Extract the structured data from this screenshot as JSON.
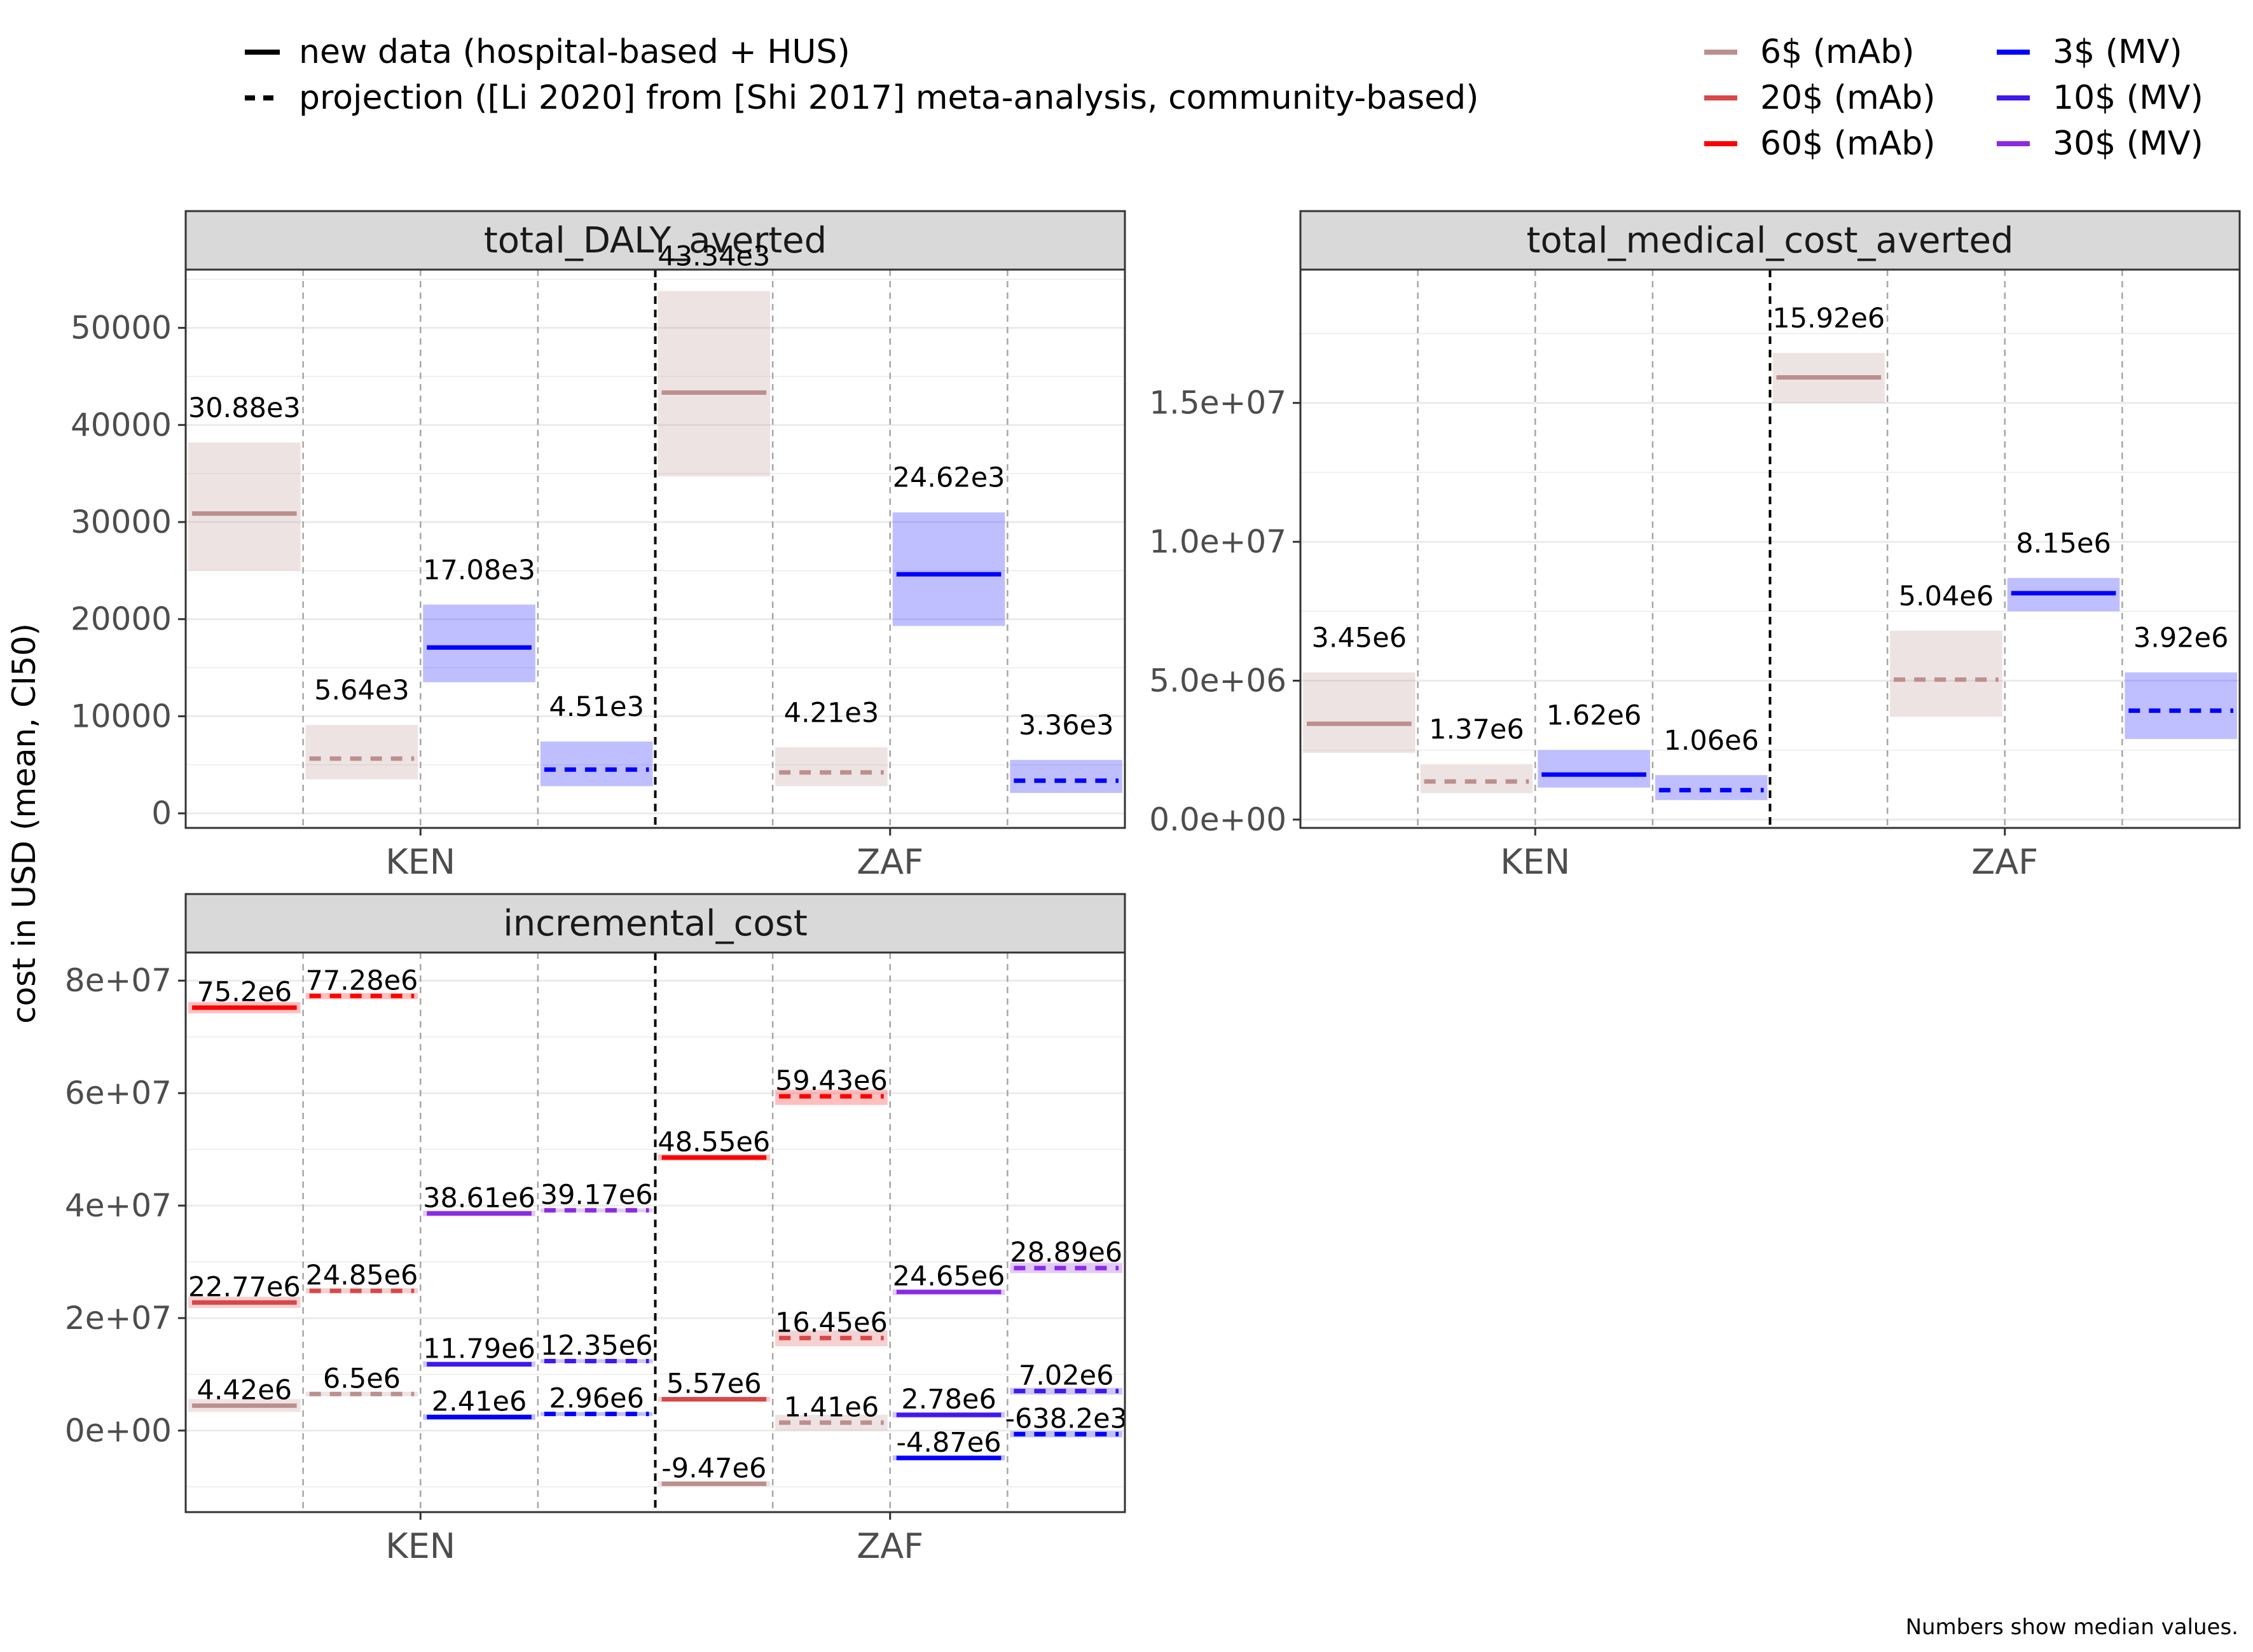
{
  "legend": {
    "linetype": [
      {
        "label": "new data (hospital-based + HUS)",
        "dash": "solid"
      },
      {
        "label": "projection ([Li 2020] from [Shi 2017] meta-analysis, community-based)",
        "dash": "dashed"
      }
    ],
    "colors": [
      {
        "label": "6$ (mAb)",
        "color": "#bc8f8f"
      },
      {
        "label": "20$ (mAb)",
        "color": "#d94747"
      },
      {
        "label": "60$ (mAb)",
        "color": "#ff0000"
      },
      {
        "label": "3$ (MV)",
        "color": "#0000ff"
      },
      {
        "label": "10$ (MV)",
        "color": "#4018ee"
      },
      {
        "label": "30$ (MV)",
        "color": "#8a2be2"
      }
    ]
  },
  "y_axis_label": "cost in USD (mean, CI50)",
  "caption": "Numbers show median values.",
  "chart_data": [
    {
      "type": "crossbar",
      "title": "total_DALY_averted",
      "categories": [
        "KEN",
        "ZAF"
      ],
      "ylim": [
        -1500,
        56000
      ],
      "yticks": [
        0,
        10000,
        20000,
        30000,
        40000,
        50000
      ],
      "ytick_labels": [
        "0",
        "10000",
        "20000",
        "30000",
        "40000",
        "50000"
      ],
      "items": [
        {
          "country": "KEN",
          "slot": 0,
          "series": "6$ (mAb)",
          "dash": "solid",
          "median": 30880,
          "low": 25000,
          "high": 38200,
          "label": "30.88e3"
        },
        {
          "country": "KEN",
          "slot": 1,
          "series": "6$ (mAb)",
          "dash": "dashed",
          "median": 5640,
          "low": 3500,
          "high": 9100,
          "label": "5.64e3"
        },
        {
          "country": "KEN",
          "slot": 2,
          "series": "3$ (MV)",
          "dash": "solid",
          "median": 17080,
          "low": 13500,
          "high": 21500,
          "label": "17.08e3"
        },
        {
          "country": "KEN",
          "slot": 3,
          "series": "3$ (MV)",
          "dash": "dashed",
          "median": 4510,
          "low": 2800,
          "high": 7400,
          "label": "4.51e3"
        },
        {
          "country": "ZAF",
          "slot": 0,
          "series": "6$ (mAb)",
          "dash": "solid",
          "median": 43340,
          "low": 34700,
          "high": 53800,
          "label": "43.34e3"
        },
        {
          "country": "ZAF",
          "slot": 1,
          "series": "6$ (mAb)",
          "dash": "dashed",
          "median": 4210,
          "low": 2800,
          "high": 6800,
          "label": "4.21e3"
        },
        {
          "country": "ZAF",
          "slot": 2,
          "series": "3$ (MV)",
          "dash": "solid",
          "median": 24620,
          "low": 19300,
          "high": 31000,
          "label": "24.62e3"
        },
        {
          "country": "ZAF",
          "slot": 3,
          "series": "3$ (MV)",
          "dash": "dashed",
          "median": 3360,
          "low": 2100,
          "high": 5500,
          "label": "3.36e3"
        }
      ]
    },
    {
      "type": "crossbar",
      "title": "total_medical_cost_averted",
      "categories": [
        "KEN",
        "ZAF"
      ],
      "ylim": [
        -300000,
        19800000
      ],
      "yticks": [
        0,
        5000000,
        10000000,
        15000000
      ],
      "ytick_labels": [
        "0.0e+00",
        "5.0e+06",
        "1.0e+07",
        "1.5e+07"
      ],
      "items": [
        {
          "country": "KEN",
          "slot": 0,
          "series": "6$ (mAb)",
          "dash": "solid",
          "median": 3450000,
          "low": 2400000,
          "high": 5300000,
          "label": "3.45e6"
        },
        {
          "country": "KEN",
          "slot": 1,
          "series": "6$ (mAb)",
          "dash": "dashed",
          "median": 1370000,
          "low": 950000,
          "high": 2000000,
          "label": "1.37e6"
        },
        {
          "country": "KEN",
          "slot": 2,
          "series": "3$ (MV)",
          "dash": "solid",
          "median": 1620000,
          "low": 1150000,
          "high": 2500000,
          "label": "1.62e6"
        },
        {
          "country": "KEN",
          "slot": 3,
          "series": "3$ (MV)",
          "dash": "dashed",
          "median": 1060000,
          "low": 700000,
          "high": 1600000,
          "label": "1.06e6"
        },
        {
          "country": "ZAF",
          "slot": 0,
          "series": "6$ (mAb)",
          "dash": "solid",
          "median": 15920000,
          "low": 15000000,
          "high": 16800000,
          "label": "15.92e6"
        },
        {
          "country": "ZAF",
          "slot": 1,
          "series": "6$ (mAb)",
          "dash": "dashed",
          "median": 5040000,
          "low": 3700000,
          "high": 6800000,
          "label": "5.04e6"
        },
        {
          "country": "ZAF",
          "slot": 2,
          "series": "3$ (MV)",
          "dash": "solid",
          "median": 8150000,
          "low": 7500000,
          "high": 8700000,
          "label": "8.15e6"
        },
        {
          "country": "ZAF",
          "slot": 3,
          "series": "3$ (MV)",
          "dash": "dashed",
          "median": 3920000,
          "low": 2900000,
          "high": 5300000,
          "label": "3.92e6"
        }
      ]
    },
    {
      "type": "crossbar",
      "title": "incremental_cost",
      "categories": [
        "KEN",
        "ZAF"
      ],
      "ylim": [
        -14500000,
        85000000
      ],
      "yticks": [
        0,
        20000000,
        40000000,
        60000000,
        80000000
      ],
      "ytick_labels": [
        "0e+00",
        "2e+07",
        "4e+07",
        "6e+07",
        "8e+07"
      ],
      "items": [
        {
          "country": "KEN",
          "slot": 0,
          "series": "60$ (mAb)",
          "dash": "solid",
          "median": 75200000,
          "low": 74200000,
          "high": 76200000,
          "label": "75.2e6"
        },
        {
          "country": "KEN",
          "slot": 0,
          "series": "20$ (mAb)",
          "dash": "solid",
          "median": 22770000,
          "low": 21800000,
          "high": 23800000,
          "label": "22.77e6"
        },
        {
          "country": "KEN",
          "slot": 0,
          "series": "6$ (mAb)",
          "dash": "solid",
          "median": 4420000,
          "low": 3300000,
          "high": 5600000,
          "label": "4.42e6"
        },
        {
          "country": "KEN",
          "slot": 1,
          "series": "60$ (mAb)",
          "dash": "dashed",
          "median": 77280000,
          "low": 76700000,
          "high": 77800000,
          "label": "77.28e6"
        },
        {
          "country": "KEN",
          "slot": 1,
          "series": "20$ (mAb)",
          "dash": "dashed",
          "median": 24850000,
          "low": 24400000,
          "high": 25300000,
          "label": "24.85e6"
        },
        {
          "country": "KEN",
          "slot": 1,
          "series": "6$ (mAb)",
          "dash": "dashed",
          "median": 6500000,
          "low": 6100000,
          "high": 6900000,
          "label": "6.5e6"
        },
        {
          "country": "KEN",
          "slot": 2,
          "series": "30$ (MV)",
          "dash": "solid",
          "median": 38610000,
          "low": 38100000,
          "high": 39100000,
          "label": "38.61e6"
        },
        {
          "country": "KEN",
          "slot": 2,
          "series": "10$ (MV)",
          "dash": "solid",
          "median": 11790000,
          "low": 11300000,
          "high": 12300000,
          "label": "11.79e6"
        },
        {
          "country": "KEN",
          "slot": 2,
          "series": "3$ (MV)",
          "dash": "solid",
          "median": 2410000,
          "low": 1900000,
          "high": 2900000,
          "label": "2.41e6"
        },
        {
          "country": "KEN",
          "slot": 3,
          "series": "30$ (MV)",
          "dash": "dashed",
          "median": 39170000,
          "low": 38800000,
          "high": 39500000,
          "label": "39.17e6"
        },
        {
          "country": "KEN",
          "slot": 3,
          "series": "10$ (MV)",
          "dash": "dashed",
          "median": 12350000,
          "low": 12000000,
          "high": 12700000,
          "label": "12.35e6"
        },
        {
          "country": "KEN",
          "slot": 3,
          "series": "3$ (MV)",
          "dash": "dashed",
          "median": 2960000,
          "low": 2600000,
          "high": 3300000,
          "label": "2.96e6"
        },
        {
          "country": "ZAF",
          "slot": 0,
          "series": "60$ (mAb)",
          "dash": "solid",
          "median": 48550000,
          "low": 48000000,
          "high": 49100000,
          "label": "48.55e6"
        },
        {
          "country": "ZAF",
          "slot": 0,
          "series": "20$ (mAb)",
          "dash": "solid",
          "median": 5570000,
          "low": 5100000,
          "high": 6000000,
          "label": "5.57e6"
        },
        {
          "country": "ZAF",
          "slot": 0,
          "series": "6$ (mAb)",
          "dash": "solid",
          "median": -9470000,
          "low": -9900000,
          "high": -9000000,
          "label": "-9.47e6"
        },
        {
          "country": "ZAF",
          "slot": 1,
          "series": "60$ (mAb)",
          "dash": "dashed",
          "median": 59430000,
          "low": 57900000,
          "high": 60600000,
          "label": "59.43e6"
        },
        {
          "country": "ZAF",
          "slot": 1,
          "series": "20$ (mAb)",
          "dash": "dashed",
          "median": 16450000,
          "low": 15000000,
          "high": 17800000,
          "label": "16.45e6"
        },
        {
          "country": "ZAF",
          "slot": 1,
          "series": "6$ (mAb)",
          "dash": "dashed",
          "median": 1410000,
          "low": 0,
          "high": 2800000,
          "label": "1.41e6"
        },
        {
          "country": "ZAF",
          "slot": 2,
          "series": "30$ (MV)",
          "dash": "solid",
          "median": 24650000,
          "low": 24100000,
          "high": 25100000,
          "label": "24.65e6"
        },
        {
          "country": "ZAF",
          "slot": 2,
          "series": "10$ (MV)",
          "dash": "solid",
          "median": 2780000,
          "low": 2300000,
          "high": 3300000,
          "label": "2.78e6"
        },
        {
          "country": "ZAF",
          "slot": 2,
          "series": "3$ (MV)",
          "dash": "solid",
          "median": -4870000,
          "low": -5300000,
          "high": -4400000,
          "label": "-4.87e6"
        },
        {
          "country": "ZAF",
          "slot": 3,
          "series": "30$ (MV)",
          "dash": "dashed",
          "median": 28890000,
          "low": 28000000,
          "high": 29800000,
          "label": "28.89e6"
        },
        {
          "country": "ZAF",
          "slot": 3,
          "series": "10$ (MV)",
          "dash": "dashed",
          "median": 7020000,
          "low": 6400000,
          "high": 7600000,
          "label": "7.02e6"
        },
        {
          "country": "ZAF",
          "slot": 3,
          "series": "3$ (MV)",
          "dash": "dashed",
          "median": -638200,
          "low": -1200000,
          "high": -100000,
          "label": "-638.2e3"
        }
      ]
    }
  ]
}
